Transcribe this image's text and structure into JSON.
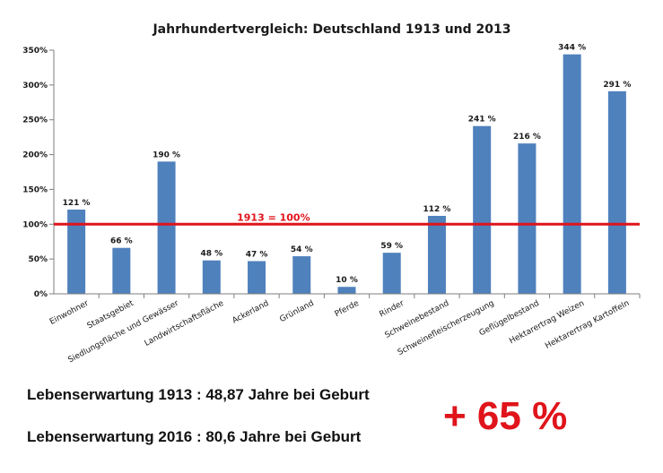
{
  "chart_data": {
    "type": "bar",
    "title": "Jahrhundertvergleich: Deutschland 1913 und 2013",
    "categories": [
      "Einwohner",
      "Staatsgebiet",
      "Siedlungsfläche und Gewässer",
      "Landwirtschaftsfläche",
      "Ackerland",
      "Grünland",
      "Pferde",
      "Rinder",
      "Schweinebestand",
      "Schweinefleischerzeugung",
      "Geflügelbestand",
      "Hektarertrag Weizen",
      "Hektarertrag Kartoffeln"
    ],
    "values": [
      121,
      66,
      190,
      48,
      47,
      54,
      10,
      59,
      112,
      241,
      216,
      344,
      291
    ],
    "data_labels": [
      "121 %",
      "66 %",
      "190 %",
      "48 %",
      "47 %",
      "54 %",
      "10 %",
      "59 %",
      "112 %",
      "241 %",
      "216 %",
      "344 %",
      "291 %"
    ],
    "yticks": [
      0,
      50,
      100,
      150,
      200,
      250,
      300,
      350
    ],
    "ytick_labels": [
      "0%",
      "50%",
      "100%",
      "150%",
      "200%",
      "250%",
      "300%",
      "350%"
    ],
    "ylim": [
      0,
      350
    ],
    "grid": false,
    "reference_line": {
      "value": 100,
      "label": "1913 = 100%",
      "color": "#e0141b"
    },
    "bar_color": "#4f81bd"
  },
  "footer": {
    "line1": "Lebenserwartung 1913 : 48,87 Jahre bei Geburt",
    "line2": "Lebenserwartung 2016 : 80,6 Jahre bei Geburt",
    "highlight": "+ 65 %",
    "highlight_color": "#e0141b"
  }
}
